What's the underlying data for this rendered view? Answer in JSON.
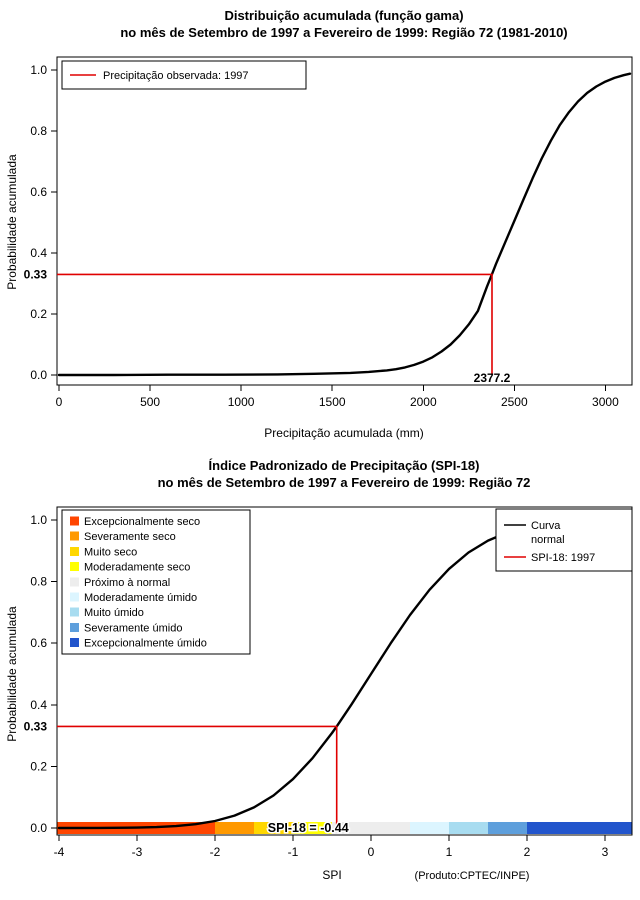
{
  "chart_data": [
    {
      "type": "line",
      "title_line1": "Distribuição acumulada (função gama)",
      "title_line2": "no mês de Setembro de 1997 a Fevereiro de 1999: Região 72 (1981-2010)",
      "xlabel": "Precipitação acumulada (mm)",
      "ylabel": "Probabilidade acumulada",
      "xlim": [
        0,
        3135
      ],
      "ylim": [
        0,
        1
      ],
      "x_ticks": [
        0,
        500,
        1000,
        1500,
        2000,
        2500,
        3000
      ],
      "y_ticks": [
        0,
        0.2,
        0.4,
        0.6,
        0.8,
        1
      ],
      "grid": false,
      "legend_position": "top-left",
      "legend_label": "Precipitação observada: 1997",
      "curve_color": "#000000",
      "marker": {
        "color": "#E00000",
        "probability": 0.33,
        "probability_label": "0.33",
        "value": 2377.2,
        "value_label": "2377.2"
      },
      "curve": {
        "name": "Distribuição acumulada (função gama)",
        "x": [
          0,
          300,
          600,
          900,
          1200,
          1400,
          1600,
          1700,
          1800,
          1850,
          1900,
          1950,
          2000,
          2050,
          2100,
          2150,
          2200,
          2250,
          2300,
          2350,
          2377,
          2400,
          2450,
          2500,
          2550,
          2600,
          2650,
          2700,
          2750,
          2800,
          2850,
          2900,
          2950,
          3000,
          3050,
          3100,
          3135
        ],
        "y": [
          0,
          0,
          0.001,
          0.001,
          0.002,
          0.004,
          0.007,
          0.01,
          0.015,
          0.019,
          0.025,
          0.033,
          0.044,
          0.058,
          0.077,
          0.1,
          0.13,
          0.166,
          0.21,
          0.29,
          0.33,
          0.365,
          0.435,
          0.505,
          0.575,
          0.645,
          0.71,
          0.768,
          0.82,
          0.862,
          0.897,
          0.925,
          0.946,
          0.962,
          0.974,
          0.983,
          0.988
        ]
      }
    },
    {
      "type": "line",
      "title_line1": "Índice Padronizado de Precipitação (SPI-18)",
      "title_line2": "no mês de Setembro de 1997 a Fevereiro de 1999: Região 72",
      "xlabel": "SPI",
      "ylabel": "Probabilidade acumulada",
      "xlim": [
        -4,
        3
      ],
      "ylim": [
        0,
        1
      ],
      "x_ticks": [
        -4,
        -3,
        -2,
        -1,
        0,
        1,
        2,
        3
      ],
      "y_ticks": [
        0,
        0.2,
        0.4,
        0.6,
        0.8,
        1
      ],
      "grid": false,
      "legend_right": {
        "curve_label_line1": "Curva",
        "curve_label_line2": "normal",
        "curve_color": "#000000",
        "spi_label": "SPI-18: 1997",
        "spi_color": "#E00000"
      },
      "categories": [
        {
          "label": "Excepcionalmente seco",
          "color": "#FF4500",
          "from": -4,
          "to": -2
        },
        {
          "label": "Severamente seco",
          "color": "#FF9900",
          "from": -2,
          "to": -1.5
        },
        {
          "label": "Muito seco",
          "color": "#FFD700",
          "from": -1.5,
          "to": -1
        },
        {
          "label": "Moderadamente seco",
          "color": "#FFFF00",
          "from": -1,
          "to": -0.5
        },
        {
          "label": "Próximo à normal",
          "color": "#EDEDED",
          "from": -0.5,
          "to": 0.5
        },
        {
          "label": "Moderadamente úmido",
          "color": "#DCF5FF",
          "from": 0.5,
          "to": 1
        },
        {
          "label": "Muito úmido",
          "color": "#A8DCF0",
          "from": 1,
          "to": 1.5
        },
        {
          "label": "Severamente úmido",
          "color": "#5E9FDC",
          "from": 1.5,
          "to": 2
        },
        {
          "label": "Excepcionalmente úmido",
          "color": "#2255CC",
          "from": 2,
          "to": 3
        }
      ],
      "marker": {
        "color": "#E00000",
        "probability": 0.33,
        "probability_label": "0.33",
        "value": -0.44,
        "value_label": "SPI-18 = -0.44"
      },
      "footer": "(Produto:CPTEC/INPE)",
      "curve": {
        "name": "Curva normal",
        "x": [
          -4,
          -3.5,
          -3,
          -2.75,
          -2.5,
          -2.25,
          -2,
          -1.75,
          -1.5,
          -1.25,
          -1,
          -0.75,
          -0.5,
          -0.44,
          -0.25,
          0,
          0.25,
          0.5,
          0.75,
          1,
          1.25,
          1.5,
          1.75,
          2,
          2.25,
          2.5,
          2.75,
          3
        ],
        "y": [
          0.0001,
          0.0002,
          0.0013,
          0.003,
          0.0062,
          0.0122,
          0.0228,
          0.0401,
          0.0668,
          0.1056,
          0.1587,
          0.2266,
          0.3085,
          0.33,
          0.4013,
          0.5,
          0.5987,
          0.6915,
          0.7734,
          0.8413,
          0.8944,
          0.9332,
          0.9599,
          0.9772,
          0.9878,
          0.9938,
          0.997,
          0.9987
        ]
      }
    }
  ]
}
